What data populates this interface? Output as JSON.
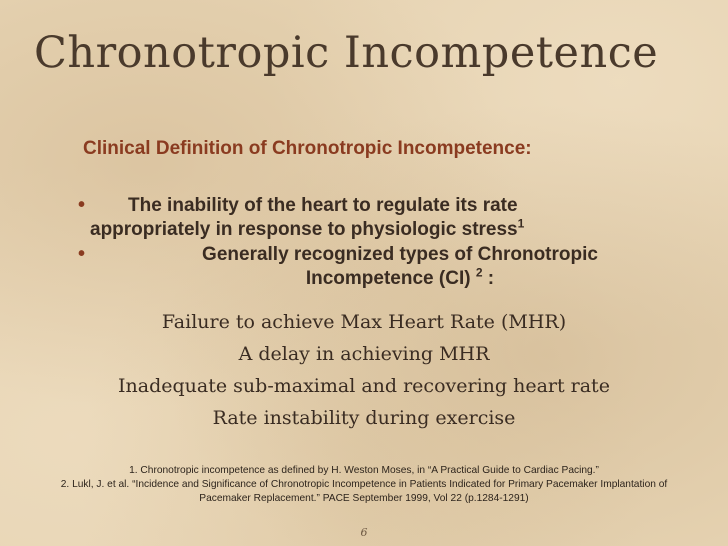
{
  "slide": {
    "title": "Chronotropic Incompetence",
    "subtitle": "Clinical Definition of Chronotropic Incompetence:",
    "bullets": [
      {
        "text": "The inability of the heart to regulate its rate appropriately in response to physiologic stress",
        "line1": "The inability of the heart to regulate its rate",
        "line2": "appropriately in response to physiologic stress",
        "sup": "1"
      },
      {
        "line1": "Generally recognized types of Chronotropic",
        "line2": "Incompetence (CI) ",
        "sup": "2",
        "suffix": " :"
      }
    ],
    "types": [
      "Failure to achieve Max Heart Rate (MHR)",
      "A delay in achieving MHR",
      "Inadequate sub-maximal and recovering heart rate",
      "Rate instability during exercise"
    ],
    "references": [
      "1. Chronotropic incompetence as defined by H. Weston Moses, in “A Practical Guide to Cardiac Pacing.”",
      "2. Lukl, J. et al. “Incidence and Significance of Chronotropic Incompetence in Patients Indicated for Primary Pacemaker Implantation of",
      "Pacemaker Replacement.” PACE September 1999, Vol 22 (p.1284-1291)"
    ],
    "page_number": "6",
    "colors": {
      "background": "#e6d3b2",
      "title": "#4a3a2c",
      "accent": "#8a3b20",
      "text": "#3a2c22"
    }
  }
}
